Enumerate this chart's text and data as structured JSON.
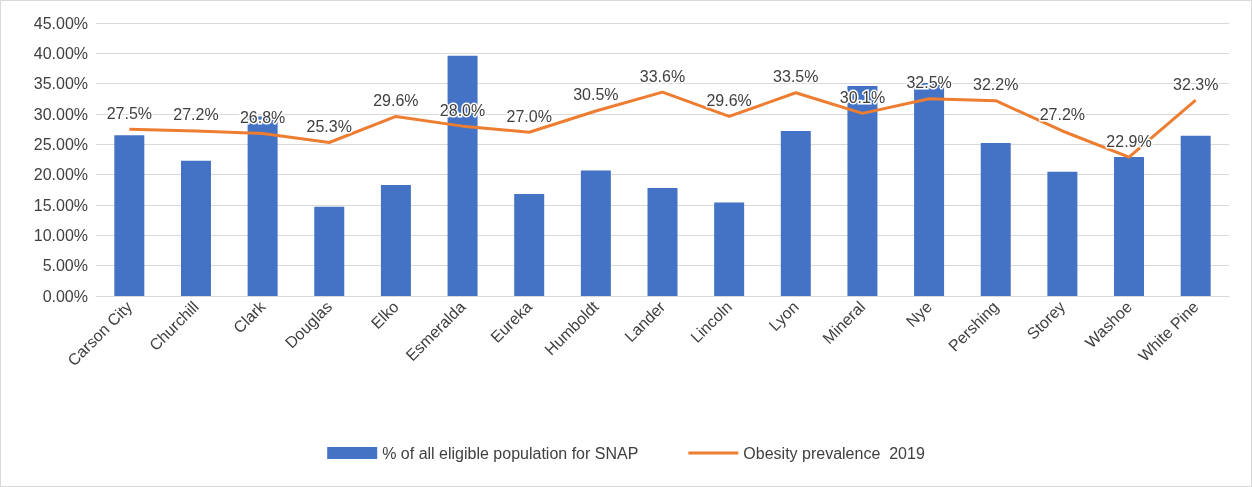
{
  "chart_data": {
    "type": "bar",
    "categories": [
      "Carson City",
      "Churchill",
      "Clark",
      "Douglas",
      "Elko",
      "Esmeralda",
      "Eureka",
      "Humboldt",
      "Lander",
      "Lincoln",
      "Lyon",
      "Mineral",
      "Nye",
      "Pershing",
      "Storey",
      "Washoe",
      "White Pine"
    ],
    "series": [
      {
        "name": "% of all eligible population for SNAP",
        "color": "#4472c4",
        "values": [
          26.5,
          22.3,
          29.6,
          14.7,
          18.3,
          39.6,
          16.8,
          20.7,
          17.8,
          15.4,
          27.2,
          34.6,
          35.1,
          25.2,
          20.5,
          22.9,
          26.4
        ]
      },
      {
        "name": "Obesity prevalence  2019",
        "color": "#ed7d31",
        "type": "line",
        "marker": "none",
        "values": [
          27.5,
          27.2,
          26.8,
          25.3,
          29.6,
          28.0,
          27.0,
          30.5,
          33.6,
          29.6,
          33.5,
          30.1,
          32.5,
          32.2,
          27.2,
          22.9,
          32.3
        ],
        "value_labels": [
          "27.5%",
          "27.2%",
          "26.8%",
          "25.3%",
          "29.6%",
          "28.0%",
          "27.0%",
          "30.5%",
          "33.6%",
          "29.6%",
          "33.5%",
          "30.1%",
          "32.5%",
          "32.2%",
          "27.2%",
          "22.9%",
          "32.3%"
        ]
      }
    ],
    "ylim": [
      0,
      45
    ],
    "yticks": [
      {
        "value": 0,
        "label": "0.00%"
      },
      {
        "value": 5,
        "label": "5.00%"
      },
      {
        "value": 10,
        "label": "10.00%"
      },
      {
        "value": 15,
        "label": "15.00%"
      },
      {
        "value": 20,
        "label": "20.00%"
      },
      {
        "value": 25,
        "label": "25.00%"
      },
      {
        "value": 30,
        "label": "30.00%"
      },
      {
        "value": 35,
        "label": "35.00%"
      },
      {
        "value": 40,
        "label": "40.00%"
      },
      {
        "value": 45,
        "label": "45.00%"
      }
    ],
    "grid": "y",
    "legend": "bottom"
  }
}
